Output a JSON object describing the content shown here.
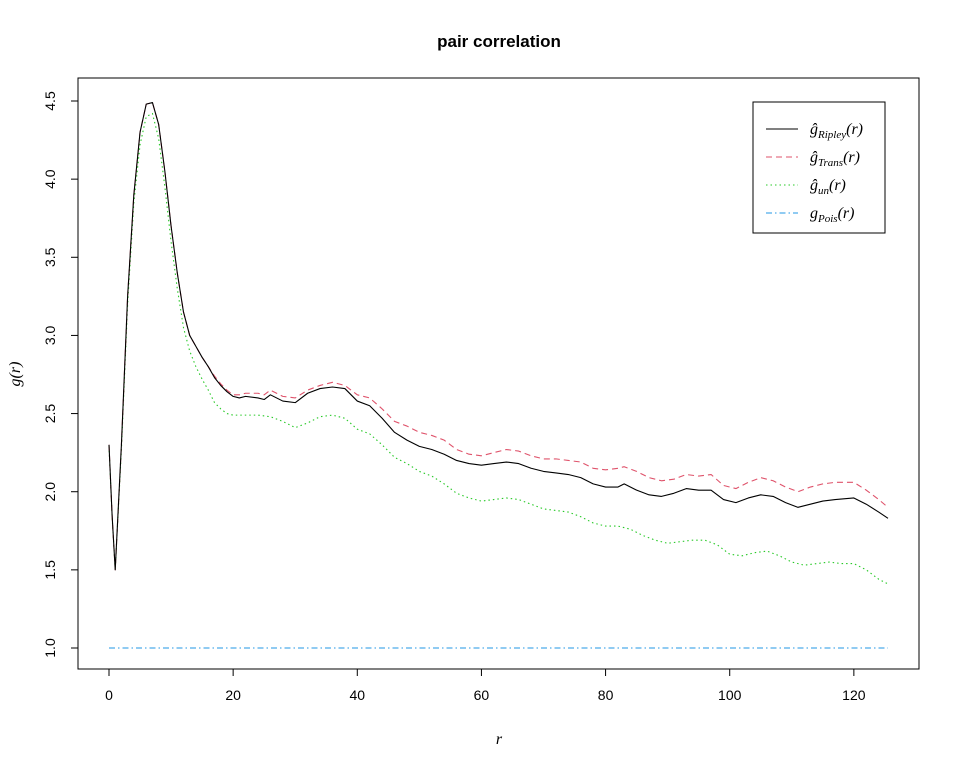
{
  "chart_data": {
    "type": "line",
    "title": "pair correlation",
    "xlabel": "r",
    "ylabel": "g(r)",
    "xlim": [
      0,
      125.5
    ],
    "ylim": [
      0.9,
      4.6
    ],
    "xticks": [
      0,
      20,
      40,
      60,
      80,
      100,
      120
    ],
    "yticks": [
      1.0,
      1.5,
      2.0,
      2.5,
      3.0,
      3.5,
      4.0,
      4.5
    ],
    "xtick_labels": [
      "0",
      "20",
      "40",
      "60",
      "80",
      "100",
      "120"
    ],
    "ytick_labels": [
      "1.0",
      "1.5",
      "2.0",
      "2.5",
      "3.0",
      "3.5",
      "4.0",
      "4.5"
    ],
    "grid": false,
    "legend_position": "top-right",
    "series": [
      {
        "name": "ĝ_Ripley(r)",
        "label_main": "ĝ",
        "label_sub": "Ripley",
        "label_tail": "(r)",
        "color": "#000000",
        "dash": "",
        "x": [
          0,
          0.5,
          1,
          2,
          3,
          4,
          5,
          6,
          7,
          8,
          9,
          10,
          11,
          12,
          13,
          14,
          15,
          16,
          17,
          18,
          19,
          20,
          21,
          22,
          24,
          25,
          26,
          27,
          28,
          30,
          32,
          34,
          36,
          38,
          40,
          42,
          44,
          46,
          48,
          50,
          52,
          54,
          56,
          58,
          60,
          62,
          64,
          66,
          68,
          70,
          72,
          74,
          76,
          78,
          80,
          82,
          83,
          85,
          87,
          89,
          91,
          93,
          95,
          97,
          99,
          101,
          103,
          105,
          107,
          109,
          111,
          113,
          115,
          117,
          120,
          122,
          124,
          125.5
        ],
        "y": [
          2.3,
          1.85,
          1.5,
          2.3,
          3.25,
          3.9,
          4.3,
          4.48,
          4.49,
          4.35,
          4.05,
          3.7,
          3.4,
          3.15,
          3.0,
          2.93,
          2.86,
          2.8,
          2.73,
          2.68,
          2.64,
          2.61,
          2.6,
          2.61,
          2.6,
          2.59,
          2.62,
          2.6,
          2.58,
          2.57,
          2.63,
          2.66,
          2.67,
          2.66,
          2.58,
          2.55,
          2.47,
          2.38,
          2.33,
          2.29,
          2.27,
          2.24,
          2.2,
          2.18,
          2.17,
          2.18,
          2.19,
          2.18,
          2.15,
          2.13,
          2.12,
          2.11,
          2.09,
          2.05,
          2.03,
          2.03,
          2.05,
          2.01,
          1.98,
          1.97,
          1.99,
          2.02,
          2.01,
          2.01,
          1.95,
          1.93,
          1.96,
          1.98,
          1.97,
          1.93,
          1.9,
          1.92,
          1.94,
          1.95,
          1.96,
          1.92,
          1.87,
          1.83
        ]
      },
      {
        "name": "ĝ_Trans(r)",
        "label_main": "ĝ",
        "label_sub": "Trans",
        "label_tail": "(r)",
        "color": "#df536b",
        "dash": "6,4",
        "x": [
          0,
          0.5,
          1,
          2,
          3,
          4,
          5,
          6,
          7,
          8,
          9,
          10,
          11,
          12,
          13,
          14,
          15,
          16,
          17,
          18,
          19,
          20,
          21,
          22,
          24,
          25,
          26,
          27,
          28,
          30,
          32,
          34,
          36,
          38,
          40,
          42,
          44,
          46,
          48,
          50,
          52,
          54,
          56,
          58,
          60,
          62,
          64,
          66,
          68,
          70,
          72,
          74,
          76,
          78,
          80,
          82,
          83,
          85,
          87,
          89,
          91,
          93,
          95,
          97,
          99,
          101,
          103,
          105,
          107,
          109,
          111,
          113,
          115,
          117,
          120,
          122,
          124,
          125.5
        ],
        "y": [
          2.3,
          1.85,
          1.5,
          2.3,
          3.25,
          3.9,
          4.3,
          4.48,
          4.49,
          4.35,
          4.05,
          3.7,
          3.4,
          3.15,
          3.0,
          2.93,
          2.86,
          2.8,
          2.74,
          2.69,
          2.65,
          2.62,
          2.62,
          2.63,
          2.63,
          2.62,
          2.65,
          2.63,
          2.61,
          2.6,
          2.65,
          2.68,
          2.7,
          2.68,
          2.62,
          2.6,
          2.53,
          2.45,
          2.42,
          2.38,
          2.36,
          2.33,
          2.27,
          2.24,
          2.23,
          2.25,
          2.27,
          2.26,
          2.23,
          2.21,
          2.21,
          2.2,
          2.19,
          2.15,
          2.14,
          2.15,
          2.16,
          2.13,
          2.09,
          2.07,
          2.08,
          2.11,
          2.1,
          2.11,
          2.04,
          2.02,
          2.06,
          2.09,
          2.07,
          2.03,
          2.0,
          2.03,
          2.05,
          2.06,
          2.06,
          2.01,
          1.95,
          1.9
        ]
      },
      {
        "name": "ĝ_un(r)",
        "label_main": "ĝ",
        "label_sub": "un",
        "label_tail": "(r)",
        "color": "#28c928",
        "dash": "1.5,3",
        "x": [
          0,
          0.5,
          1,
          2,
          3,
          4,
          5,
          6,
          7,
          8,
          9,
          10,
          11,
          12,
          13,
          14,
          15,
          16,
          17,
          18,
          19,
          20,
          22,
          24,
          26,
          28,
          30,
          32,
          34,
          36,
          38,
          40,
          42,
          44,
          46,
          48,
          50,
          52,
          54,
          56,
          58,
          60,
          62,
          64,
          66,
          68,
          70,
          72,
          74,
          76,
          78,
          80,
          82,
          84,
          86,
          88,
          90,
          92,
          94,
          96,
          98,
          100,
          102,
          104,
          106,
          108,
          110,
          112,
          114,
          116,
          118,
          120,
          122,
          124,
          125.5
        ],
        "y": [
          2.29,
          1.84,
          1.5,
          2.27,
          3.2,
          3.85,
          4.22,
          4.4,
          4.42,
          4.26,
          3.95,
          3.6,
          3.3,
          3.05,
          2.9,
          2.8,
          2.72,
          2.65,
          2.57,
          2.53,
          2.5,
          2.49,
          2.49,
          2.49,
          2.48,
          2.45,
          2.41,
          2.44,
          2.48,
          2.49,
          2.47,
          2.4,
          2.37,
          2.3,
          2.22,
          2.18,
          2.13,
          2.1,
          2.05,
          1.99,
          1.96,
          1.94,
          1.95,
          1.96,
          1.95,
          1.92,
          1.89,
          1.88,
          1.87,
          1.84,
          1.8,
          1.78,
          1.78,
          1.76,
          1.72,
          1.69,
          1.67,
          1.68,
          1.69,
          1.69,
          1.66,
          1.6,
          1.59,
          1.61,
          1.62,
          1.59,
          1.55,
          1.53,
          1.54,
          1.55,
          1.54,
          1.54,
          1.5,
          1.44,
          1.41
        ]
      },
      {
        "name": "g_Pois(r)",
        "label_main": "g",
        "label_sub": "Pois",
        "label_tail": "(r)",
        "color": "#2297e6",
        "dash": "6,3,1.5,3",
        "x": [
          0,
          125.5
        ],
        "y": [
          1.0,
          1.0
        ]
      }
    ]
  }
}
